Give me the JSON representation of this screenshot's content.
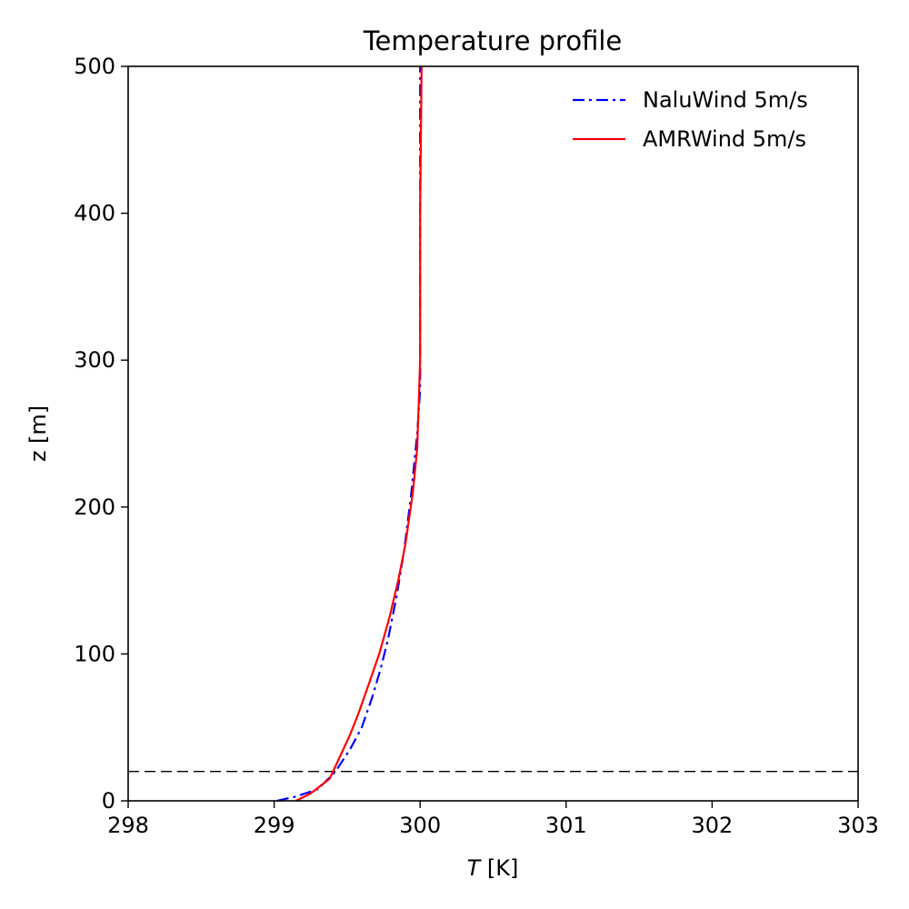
{
  "chart_data": {
    "type": "line",
    "title": "Temperature profile",
    "xlabel_var": "T",
    "xlabel_unit": "[K]",
    "ylabel": "z [m]",
    "xlim": [
      298,
      303
    ],
    "ylim": [
      0,
      500
    ],
    "xticks": [
      "298",
      "299",
      "300",
      "301",
      "302",
      "303"
    ],
    "yticks": [
      "0",
      "100",
      "200",
      "300",
      "400",
      "500"
    ],
    "grid": false,
    "legend_position": "top-right",
    "series": [
      {
        "name": "NaluWind 5m/s",
        "color": "#0000ff",
        "style": "dashdot",
        "points": [
          [
            299.02,
            0
          ],
          [
            299.15,
            3
          ],
          [
            299.3,
            8
          ],
          [
            299.42,
            20
          ],
          [
            299.52,
            35
          ],
          [
            299.6,
            50
          ],
          [
            299.67,
            70
          ],
          [
            299.73,
            90
          ],
          [
            299.78,
            110
          ],
          [
            299.84,
            140
          ],
          [
            299.89,
            170
          ],
          [
            299.94,
            210
          ],
          [
            299.98,
            250
          ],
          [
            300.0,
            280
          ],
          [
            300.0,
            320
          ],
          [
            300.0,
            400
          ],
          [
            300.0,
            500
          ]
        ]
      },
      {
        "name": "AMRWind 5m/s",
        "color": "#ff0000",
        "style": "solid",
        "points": [
          [
            299.15,
            0
          ],
          [
            299.25,
            5
          ],
          [
            299.38,
            15
          ],
          [
            299.45,
            30
          ],
          [
            299.52,
            45
          ],
          [
            299.58,
            60
          ],
          [
            299.65,
            80
          ],
          [
            299.72,
            100
          ],
          [
            299.79,
            125
          ],
          [
            299.85,
            150
          ],
          [
            299.9,
            175
          ],
          [
            299.95,
            210
          ],
          [
            299.98,
            240
          ],
          [
            299.99,
            270
          ],
          [
            300.0,
            300
          ],
          [
            300.0,
            400
          ],
          [
            300.01,
            500
          ]
        ]
      }
    ],
    "reference_lines": [
      {
        "orientation": "horizontal",
        "y": 20,
        "color": "#000000",
        "style": "dashed"
      }
    ]
  }
}
